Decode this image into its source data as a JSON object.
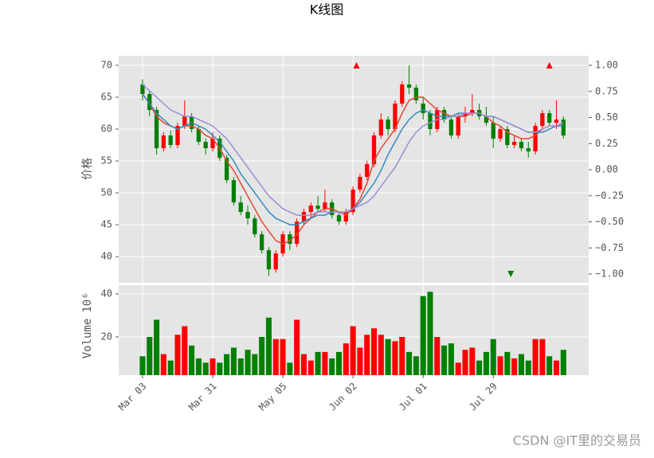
{
  "chart_data": {
    "type": "candlestick",
    "title": "K线图",
    "ylabel": "价格",
    "grid": true,
    "up_color": "#ff0000",
    "down_color": "#008000",
    "open": [
      67,
      65.5,
      63,
      57,
      59,
      57.5,
      60.5,
      62,
      60,
      58,
      57,
      58.5,
      55.5,
      52,
      48.5,
      47,
      46,
      43.5,
      41,
      38,
      40.5,
      43.5,
      42,
      45.5,
      47,
      48,
      47.5,
      48.5,
      46.5,
      45.5,
      47,
      50.5,
      52.5,
      54.5,
      59,
      61.5,
      60,
      64,
      67,
      66.5,
      64,
      62.5,
      60,
      63,
      61.5,
      59,
      62,
      62.5,
      63,
      62,
      61,
      58.5,
      60,
      57.5,
      58,
      57,
      56.5,
      60.5,
      62.5,
      61,
      61.5
    ],
    "high": [
      67.8,
      66,
      63.5,
      59.5,
      59.8,
      61,
      64.5,
      62.5,
      60.5,
      58.5,
      59.5,
      59,
      56,
      52.5,
      49.5,
      48,
      46.5,
      44,
      41.5,
      41,
      44,
      44,
      46,
      47.5,
      48.5,
      49.5,
      50.5,
      49,
      47,
      47.5,
      51,
      53,
      55,
      59.5,
      62.5,
      62,
      64.5,
      67.5,
      70,
      67,
      65,
      63,
      63.5,
      63.5,
      62,
      62.5,
      63.5,
      65.5,
      64,
      63.5,
      62,
      60.5,
      60.5,
      59,
      58.5,
      58,
      61,
      63,
      63,
      64.5,
      62
    ],
    "low": [
      64.5,
      62,
      56,
      56.5,
      57,
      57,
      60,
      59.5,
      57.5,
      56,
      56.5,
      55,
      51.5,
      48,
      46.5,
      45,
      43,
      40.5,
      37,
      37.5,
      40,
      41,
      41.5,
      45,
      46,
      47,
      47,
      46,
      45,
      45,
      46.5,
      50,
      52,
      54,
      58.5,
      59,
      59.5,
      63.5,
      65.5,
      64,
      61.5,
      59,
      59.5,
      61,
      58.5,
      58.5,
      61,
      62,
      61.5,
      60.5,
      57,
      58,
      57,
      57,
      56.5,
      55.5,
      56,
      60,
      60.5,
      60,
      58.5
    ],
    "close": [
      65.5,
      63,
      57,
      59,
      57.5,
      60.5,
      62,
      60,
      58,
      57,
      58.5,
      55.5,
      52,
      48.5,
      47,
      46,
      43.5,
      41,
      38,
      40.5,
      43.5,
      42,
      45.5,
      47,
      48,
      47.5,
      48.5,
      46.5,
      45.5,
      47,
      50.5,
      52.5,
      54.5,
      59,
      61.5,
      60,
      64,
      67,
      66.5,
      64.5,
      62.5,
      60,
      63,
      61.5,
      59,
      62,
      62.5,
      63,
      62,
      61,
      58.5,
      60,
      57.5,
      58,
      57,
      56.5,
      60.5,
      62.5,
      61,
      61.5,
      59
    ],
    "moving_averages": [
      {
        "color": "#e24a33",
        "values": [
          65.5,
          64,
          62,
          61,
          60.5,
          60,
          60.5,
          60.5,
          60,
          59,
          58.5,
          57,
          55,
          53.5,
          51.5,
          49.5,
          47.5,
          45.5,
          44,
          42.5,
          42,
          42.5,
          43.5,
          45,
          46,
          47,
          47.5,
          47.5,
          47,
          46.5,
          47.5,
          49,
          51.5,
          55,
          57,
          58.5,
          60,
          62.5,
          64.5,
          65,
          65,
          64,
          63,
          62.5,
          62,
          62,
          62,
          62.5,
          62.5,
          62,
          61,
          60.5,
          59.5,
          59,
          58.5,
          58.5,
          59,
          60,
          60.5,
          60.5,
          61
        ]
      },
      {
        "color": "#348abd",
        "values": [
          65.5,
          64,
          62.5,
          61.5,
          60.5,
          60,
          60.5,
          61,
          60.5,
          60,
          59,
          58,
          56.5,
          55,
          53,
          51.5,
          50,
          48.5,
          47,
          46,
          45.5,
          45,
          45,
          45.5,
          46,
          46.5,
          46.5,
          47,
          47,
          47,
          47.5,
          48.5,
          50,
          51.5,
          53.5,
          56,
          58,
          60,
          61.5,
          62.5,
          63,
          62.5,
          62,
          62,
          62,
          62.5,
          62.5,
          62.5,
          62.5,
          62,
          62,
          61.5,
          61,
          60.5,
          60,
          59.5,
          59.5,
          59.5,
          60,
          60.5,
          60.5
        ]
      },
      {
        "color": "#988ed5",
        "values": [
          67,
          66,
          65,
          64,
          63,
          62.5,
          62,
          62,
          61.5,
          61,
          60.5,
          59.5,
          58.5,
          57,
          55.5,
          54,
          52.5,
          51,
          49.5,
          48.5,
          47.5,
          47,
          46.5,
          46.5,
          46.5,
          47,
          47,
          47,
          47,
          47,
          47.5,
          48,
          48.5,
          49.5,
          51,
          52.5,
          54,
          56,
          58,
          59.5,
          60.5,
          61,
          61.5,
          61.5,
          62,
          62,
          62.5,
          62.5,
          62.5,
          62,
          62,
          61.5,
          61,
          60.5,
          60,
          59.5,
          59.5,
          60,
          60.5,
          60.5,
          61
        ]
      }
    ],
    "signals": [
      {
        "marker": "up",
        "color": "#ff0000",
        "x": [
          30.5,
          58
        ],
        "values": [
          1,
          1
        ]
      },
      {
        "marker": "down",
        "color": "#008000",
        "x": [
          52.5
        ],
        "values": [
          -1
        ]
      }
    ],
    "xlim": [
      -3.4,
      63.6
    ],
    "xticks": [
      {
        "value": 0,
        "label": "Mar 03"
      },
      {
        "value": 10,
        "label": "Mar 31"
      },
      {
        "value": 20,
        "label": "May 05"
      },
      {
        "value": 30,
        "label": "Jun 02"
      },
      {
        "value": 40,
        "label": "Jul 01"
      },
      {
        "value": 50,
        "label": "Jul 29"
      }
    ],
    "ylim": [
      35.9,
      71.5
    ],
    "yticks": [
      40,
      45,
      50,
      55,
      60,
      65,
      70
    ],
    "y2lim": [
      -1.084,
      1.092
    ],
    "y2ticks": [
      {
        "value": -1,
        "label": "−1.00"
      },
      {
        "value": -0.75,
        "label": "−0.75"
      },
      {
        "value": -0.5,
        "label": "−0.50"
      },
      {
        "value": -0.25,
        "label": "−0.25"
      },
      {
        "value": 0,
        "label": "0.00"
      },
      {
        "value": 0.25,
        "label": "0.25"
      },
      {
        "value": 0.5,
        "label": "0.50"
      },
      {
        "value": 0.75,
        "label": "0.75"
      },
      {
        "value": 1,
        "label": "1.00"
      }
    ],
    "volume": {
      "ylabel": "Volume",
      "offset_label": "10⁶",
      "values": [
        11,
        20,
        28,
        12,
        9,
        21,
        25,
        16,
        10,
        8,
        10,
        8,
        12,
        15,
        10,
        14,
        12,
        20,
        29,
        19,
        19,
        8,
        28,
        12,
        9,
        13,
        13,
        10,
        13,
        17,
        25,
        15,
        21,
        24,
        21,
        19,
        18,
        20,
        13,
        11,
        39,
        41,
        20,
        16,
        17,
        8,
        14,
        15,
        9,
        13,
        19,
        11,
        13,
        10,
        12,
        9,
        19,
        19,
        11,
        9,
        14
      ],
      "ylim": [
        2.2,
        44.1
      ],
      "yticks": [
        20,
        40
      ]
    }
  },
  "watermark": "CSDN @IT里的交易员"
}
